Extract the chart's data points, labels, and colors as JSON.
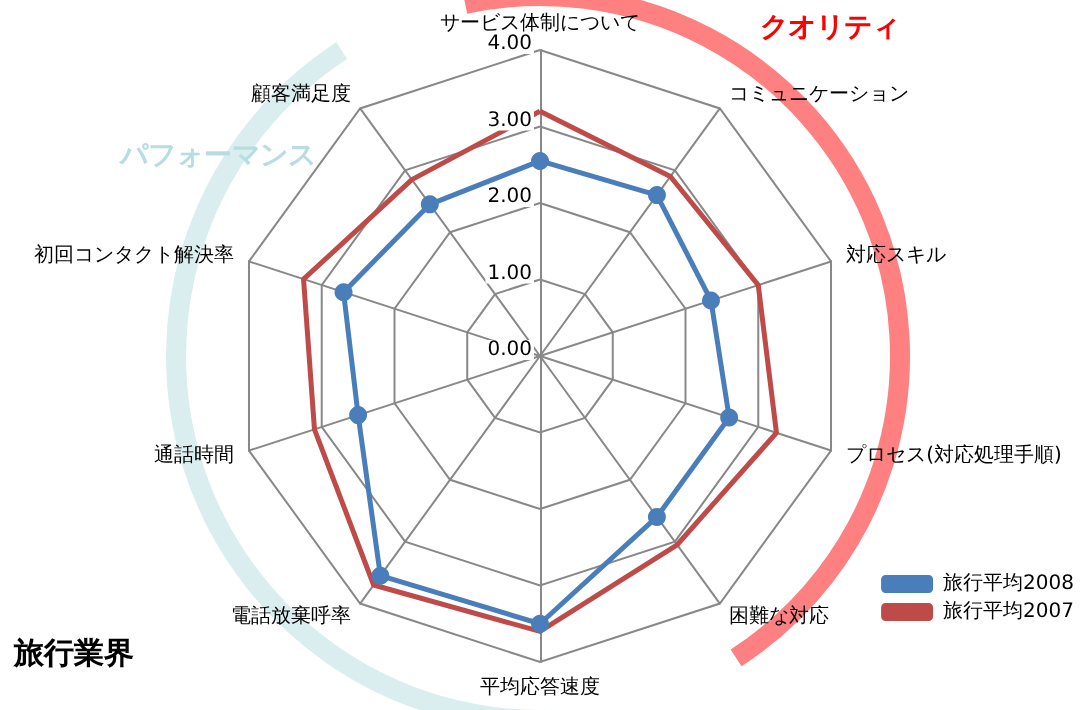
{
  "chart_data": {
    "type": "radar",
    "title": "旅行業界",
    "categories": [
      "サービス体制について",
      "コミュニケーション",
      "対応スキル",
      "プロセス(対応処理手順)",
      "困難な対応",
      "平均応答速度",
      "電話放棄呼率",
      "通話時間",
      "初回コンタクト解決率",
      "顧客満足度"
    ],
    "series": [
      {
        "name": "旅行平均2008",
        "color": "#4a7ebb",
        "marker": "circle",
        "values": [
          2.55,
          2.6,
          2.35,
          2.6,
          2.6,
          3.5,
          3.55,
          2.5,
          2.7,
          2.45
        ]
      },
      {
        "name": "旅行平均2007",
        "color": "#be4b48",
        "marker": "none",
        "values": [
          3.2,
          2.9,
          3.0,
          3.25,
          3.05,
          3.6,
          3.7,
          3.1,
          3.25,
          2.85
        ]
      }
    ],
    "ylim": [
      0,
      4
    ],
    "yticks": [
      {
        "value": 0,
        "label": "0.00"
      },
      {
        "value": 1,
        "label": "1.00"
      },
      {
        "value": 2,
        "label": "2.00"
      },
      {
        "value": 3,
        "label": "3.00"
      },
      {
        "value": 4,
        "label": "4.00"
      }
    ],
    "grid": true,
    "legend": "bottom right",
    "line_style": "solid",
    "annotations": [
      "クオリティ",
      "パフォーマンス"
    ]
  }
}
